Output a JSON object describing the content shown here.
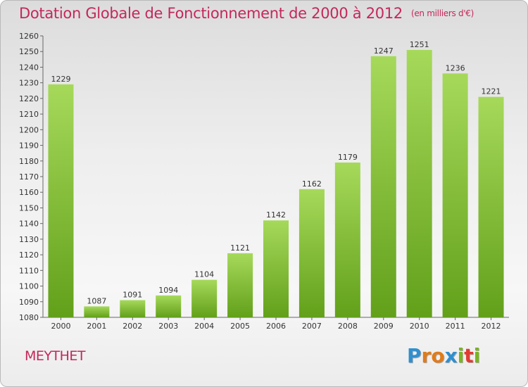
{
  "title": "Dotation Globale de Fonctionnement de 2000 à 2012",
  "unit": "(en milliers d'€)",
  "place": "MEYTHET",
  "logo": {
    "letters": [
      "P",
      "r",
      "o",
      "x",
      "i",
      "t",
      "i"
    ],
    "colors": [
      "#2f8fcf",
      "#e07b1a",
      "#e07b1a",
      "#2f8fcf",
      "#7ab51d",
      "#e03c31",
      "#7ab51d"
    ]
  },
  "colors": {
    "title": "#c4285a",
    "bar_top": "#a6d95a",
    "bar_bottom": "#62a01a",
    "label": "#333333"
  },
  "chart_data": {
    "type": "bar",
    "title": "Dotation Globale de Fonctionnement de 2000 à 2012",
    "categories": [
      "2000",
      "2001",
      "2002",
      "2003",
      "2004",
      "2005",
      "2006",
      "2007",
      "2008",
      "2009",
      "2010",
      "2011",
      "2012"
    ],
    "values": [
      1229,
      1087,
      1091,
      1094,
      1104,
      1121,
      1142,
      1162,
      1179,
      1247,
      1251,
      1236,
      1221
    ],
    "ylim": [
      1080,
      1260
    ],
    "yticks": [
      1080,
      1090,
      1100,
      1110,
      1120,
      1130,
      1140,
      1150,
      1160,
      1170,
      1180,
      1190,
      1200,
      1210,
      1220,
      1230,
      1240,
      1250,
      1260
    ],
    "grid": false,
    "data_labels": true
  }
}
